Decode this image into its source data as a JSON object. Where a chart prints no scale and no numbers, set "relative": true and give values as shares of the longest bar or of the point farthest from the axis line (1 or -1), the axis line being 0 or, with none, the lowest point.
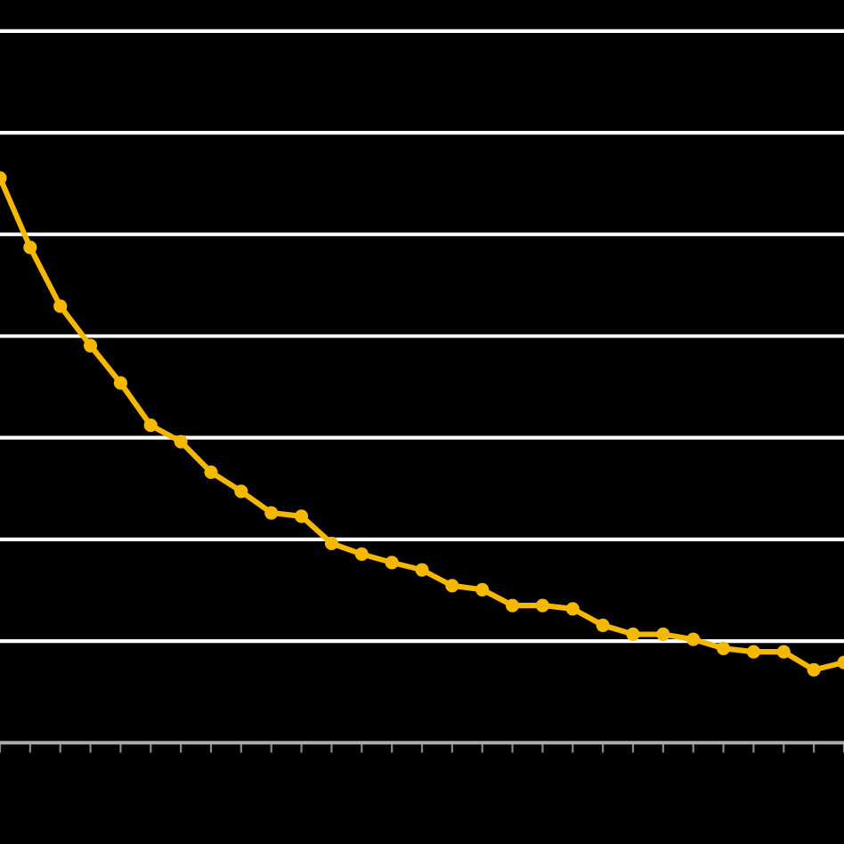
{
  "chart_data": {
    "type": "line",
    "relative": true,
    "categories": [
      null,
      null,
      null,
      null,
      null,
      null,
      null,
      null,
      null,
      null,
      null,
      null,
      null,
      null,
      null,
      null,
      null,
      null,
      null,
      null,
      null,
      null,
      null,
      null,
      null,
      null,
      null,
      null,
      null
    ],
    "series": [
      {
        "color": "#f5b800",
        "values": [
          1.0,
          0.877,
          0.773,
          0.703,
          0.637,
          0.562,
          0.533,
          0.479,
          0.445,
          0.407,
          0.401,
          0.353,
          0.334,
          0.319,
          0.306,
          0.278,
          0.271,
          0.243,
          0.243,
          0.237,
          0.208,
          0.192,
          0.192,
          0.183,
          0.167,
          0.161,
          0.161,
          0.129,
          0.142
        ]
      }
    ],
    "marker": "circle",
    "line_style": "solid",
    "grid": "y",
    "legend": false
  }
}
